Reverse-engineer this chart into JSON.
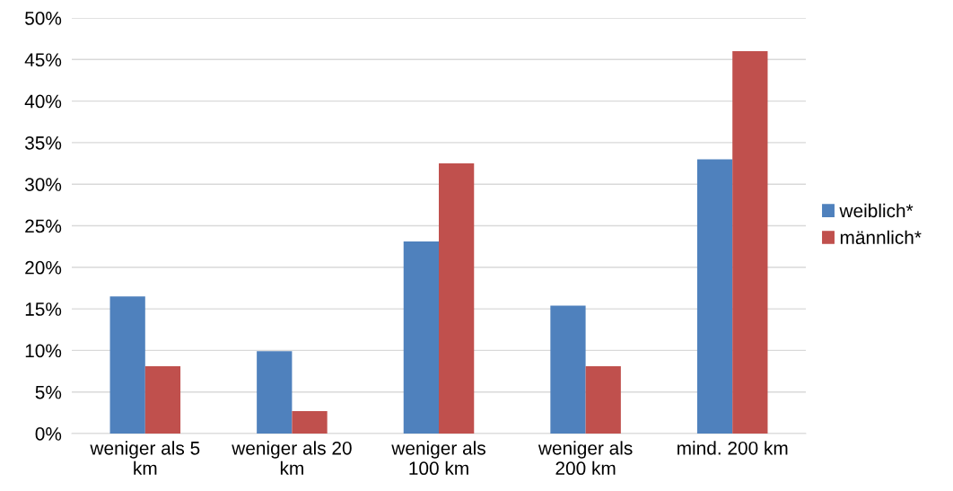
{
  "chart_data": {
    "type": "bar",
    "categories": [
      "weniger als 5\nkm",
      "weniger als 20\nkm",
      "weniger als\n100 km",
      "weniger als\n200 km",
      "mind. 200 km"
    ],
    "series": [
      {
        "name": "weiblich*",
        "color": "#4f81bd",
        "values": [
          16.5,
          9.9,
          23.1,
          15.4,
          33.0
        ]
      },
      {
        "name": "männlich*",
        "color": "#c0504d",
        "values": [
          8.1,
          2.7,
          32.5,
          8.1,
          46.0
        ]
      }
    ],
    "ylim": [
      0,
      50
    ],
    "yticks": [
      {
        "value": 0,
        "label": "0%"
      },
      {
        "value": 5,
        "label": "5%"
      },
      {
        "value": 10,
        "label": "10%"
      },
      {
        "value": 15,
        "label": "15%"
      },
      {
        "value": 20,
        "label": "20%"
      },
      {
        "value": 25,
        "label": "25%"
      },
      {
        "value": 30,
        "label": "30%"
      },
      {
        "value": 35,
        "label": "35%"
      },
      {
        "value": 40,
        "label": "40%"
      },
      {
        "value": 45,
        "label": "45%"
      },
      {
        "value": 50,
        "label": "50%"
      }
    ],
    "grid": "y",
    "legend": "right"
  }
}
